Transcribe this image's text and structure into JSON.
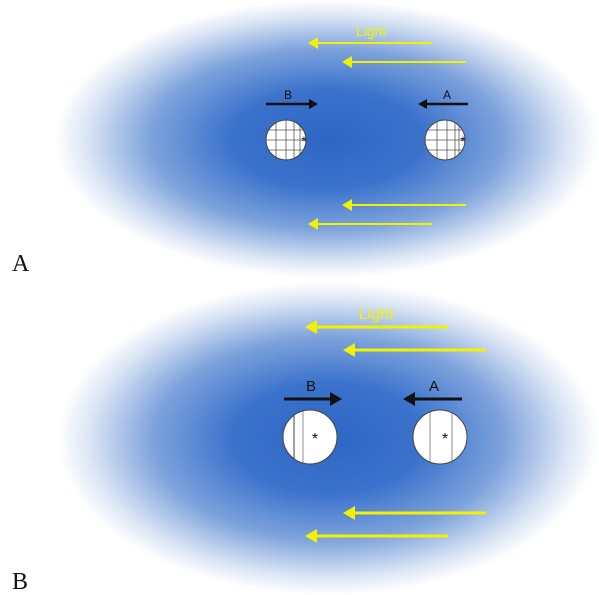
{
  "panels": [
    {
      "letter": "A",
      "light_label": "Light",
      "cell_left_label": "B",
      "cell_right_label": "A",
      "marker": "*"
    },
    {
      "letter": "B",
      "light_label": "Light",
      "cell_left_label": "B",
      "cell_right_label": "A",
      "marker": "*"
    }
  ],
  "colors": {
    "light_arrow": "#f2f200",
    "movement_arrow": "#111111",
    "glow_core": "#2e66c4",
    "background": "#ffffff"
  }
}
